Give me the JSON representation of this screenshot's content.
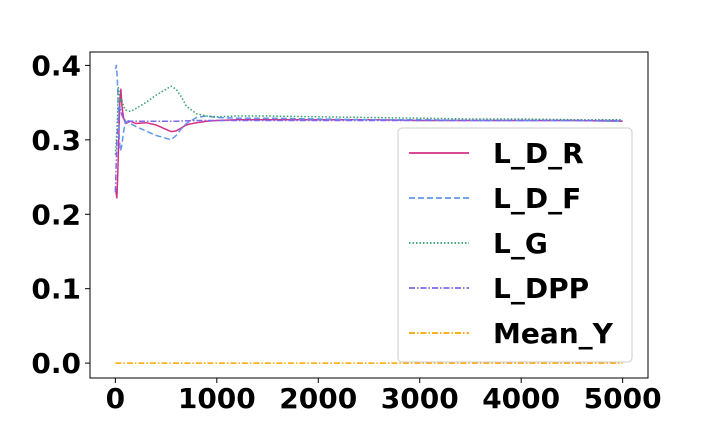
{
  "chart_data": {
    "type": "line",
    "title": "",
    "xlabel": "",
    "ylabel": "",
    "xlim": [
      -250,
      5250
    ],
    "ylim": [
      -0.02,
      0.418
    ],
    "x_ticks": [
      0,
      1000,
      2000,
      3000,
      4000,
      5000
    ],
    "x_tick_labels": [
      "0",
      "1000",
      "2000",
      "3000",
      "4000",
      "5000"
    ],
    "y_ticks": [
      0.0,
      0.1,
      0.2,
      0.3,
      0.4
    ],
    "y_tick_labels": [
      "0.0",
      "0.1",
      "0.2",
      "0.3",
      "0.4"
    ],
    "grid": false,
    "legend_position": "lower-right",
    "series": [
      {
        "name": "L_D_R",
        "color": "#d62f85",
        "dash": "solid",
        "x": [
          0,
          15,
          25,
          35,
          45,
          55,
          65,
          80,
          100,
          150,
          200,
          300,
          400,
          500,
          550,
          600,
          650,
          700,
          800,
          900,
          1000,
          1200,
          1500,
          2000,
          2500,
          3000,
          3500,
          4000,
          4500,
          5000
        ],
        "y": [
          0.235,
          0.222,
          0.26,
          0.31,
          0.355,
          0.368,
          0.345,
          0.33,
          0.322,
          0.325,
          0.322,
          0.323,
          0.32,
          0.314,
          0.311,
          0.312,
          0.316,
          0.32,
          0.323,
          0.325,
          0.326,
          0.327,
          0.327,
          0.327,
          0.327,
          0.326,
          0.326,
          0.326,
          0.326,
          0.325
        ]
      },
      {
        "name": "L_D_F",
        "color": "#6495ed",
        "dash": "dashed",
        "x": [
          0,
          10,
          20,
          30,
          40,
          50,
          60,
          80,
          100,
          150,
          200,
          300,
          400,
          500,
          550,
          600,
          650,
          700,
          800,
          900,
          1000,
          1200,
          1500,
          2000,
          2500,
          3000,
          3500,
          4000,
          4500,
          5000
        ],
        "y": [
          0.395,
          0.4,
          0.38,
          0.34,
          0.3,
          0.285,
          0.29,
          0.31,
          0.325,
          0.322,
          0.318,
          0.312,
          0.306,
          0.302,
          0.3,
          0.306,
          0.315,
          0.322,
          0.33,
          0.332,
          0.33,
          0.329,
          0.329,
          0.328,
          0.327,
          0.327,
          0.326,
          0.326,
          0.326,
          0.325
        ]
      },
      {
        "name": "L_G",
        "color": "#2e9e6b",
        "dash": "dotted",
        "x": [
          0,
          10,
          20,
          30,
          40,
          50,
          60,
          80,
          100,
          150,
          200,
          300,
          400,
          500,
          550,
          600,
          650,
          700,
          800,
          900,
          1000,
          1200,
          1500,
          2000,
          2500,
          3000,
          3500,
          4000,
          4500,
          5000
        ],
        "y": [
          0.28,
          0.3,
          0.33,
          0.37,
          0.36,
          0.35,
          0.355,
          0.345,
          0.34,
          0.338,
          0.342,
          0.35,
          0.36,
          0.368,
          0.372,
          0.368,
          0.358,
          0.345,
          0.335,
          0.332,
          0.331,
          0.332,
          0.332,
          0.331,
          0.33,
          0.329,
          0.328,
          0.328,
          0.327,
          0.327
        ]
      },
      {
        "name": "L_DPP",
        "color": "#7b68ee",
        "dash": "dashdot",
        "x": [
          0,
          15,
          30,
          45,
          60,
          80,
          100,
          150,
          200,
          400,
          600,
          800,
          1000,
          1500,
          2000,
          2500,
          3000,
          3500,
          4000,
          4500,
          5000
        ],
        "y": [
          0.23,
          0.3,
          0.33,
          0.345,
          0.335,
          0.328,
          0.326,
          0.325,
          0.325,
          0.325,
          0.325,
          0.326,
          0.326,
          0.326,
          0.326,
          0.326,
          0.326,
          0.326,
          0.326,
          0.326,
          0.326
        ]
      },
      {
        "name": "Mean_Y",
        "color": "#ffa500",
        "dash": "dashdot",
        "x": [
          0,
          5000
        ],
        "y": [
          0.0,
          0.0
        ]
      }
    ]
  }
}
